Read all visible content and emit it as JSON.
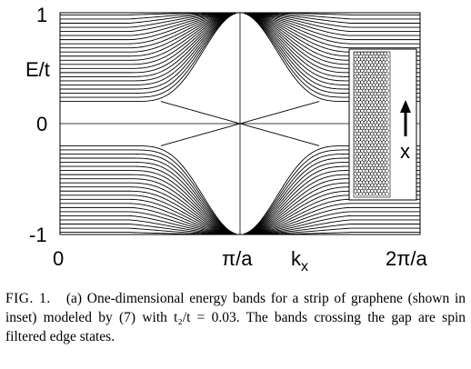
{
  "chart_data": {
    "type": "line",
    "xlabel": "kx",
    "xlabel_main": "k",
    "xlabel_sub": "x",
    "ylabel": "E/t",
    "xlim": [
      0,
      6.2832
    ],
    "ylim": [
      -1,
      1
    ],
    "x_ticks": [
      {
        "value": 0,
        "label": "0"
      },
      {
        "value": 3.1416,
        "label": "π/a"
      },
      {
        "value": 6.2832,
        "label": "2π/a"
      }
    ],
    "y_ticks": [
      {
        "value": 1,
        "label": "1"
      },
      {
        "value": 0,
        "label": "0"
      },
      {
        "value": -1,
        "label": "-1"
      }
    ],
    "model": {
      "t2_over_t": 0.03,
      "bulk_band_count": 22,
      "edge_state_count": 2
    },
    "series": [],
    "inset": {
      "description_label": "x",
      "arrow_direction": "up"
    }
  },
  "caption": {
    "fig_label": "FIG. 1.",
    "text": "(a) One-dimensional energy bands for a strip of graphene (shown in inset) modeled by (7) with t₂/t = 0.03. The bands crossing the gap are spin filtered edge states."
  }
}
